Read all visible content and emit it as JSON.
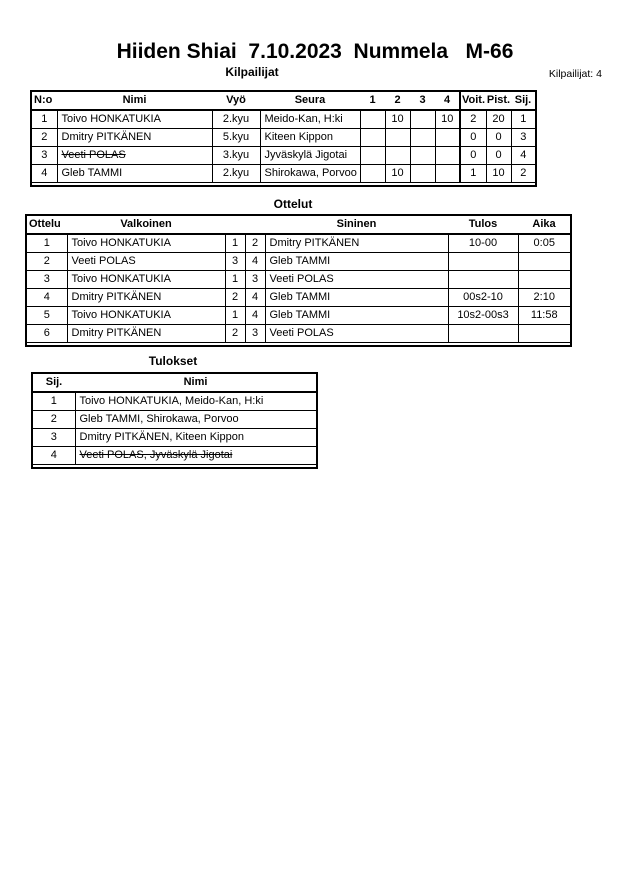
{
  "page": {
    "title": "Hiiden Shiai  7.10.2023  Nummela   M-66",
    "competitors_count": "Kilpailijat: 4"
  },
  "kilpailijat": {
    "label": "Kilpailijat",
    "headers": {
      "no": "N:o",
      "nimi": "Nimi",
      "vyo": "Vyö",
      "seura": "Seura",
      "r1": "1",
      "r2": "2",
      "r3": "3",
      "r4": "4",
      "voit": "Voit.",
      "pist": "Pist.",
      "sij": "Sij."
    },
    "rows": [
      {
        "no": "1",
        "nimi": "Toivo HONKATUKIA",
        "struck": false,
        "vyo": "2.kyu",
        "seura": "Meido-Kan, H:ki",
        "r1": "",
        "r2": "10",
        "r3": "",
        "r4": "10",
        "voit": "2",
        "pist": "20",
        "sij": "1"
      },
      {
        "no": "2",
        "nimi": "Dmitry PITKÄNEN",
        "struck": false,
        "vyo": "5.kyu",
        "seura": "Kiteen Kippon",
        "r1": "",
        "r2": "",
        "r3": "",
        "r4": "",
        "voit": "0",
        "pist": "0",
        "sij": "3"
      },
      {
        "no": "3",
        "nimi": "Veeti POLAS",
        "struck": true,
        "vyo": "3.kyu",
        "seura": "Jyväskylä Jigotai",
        "r1": "",
        "r2": "",
        "r3": "",
        "r4": "",
        "voit": "0",
        "pist": "0",
        "sij": "4"
      },
      {
        "no": "4",
        "nimi": "Gleb TAMMI",
        "struck": false,
        "vyo": "2.kyu",
        "seura": "Shirokawa, Porvoo",
        "r1": "",
        "r2": "10",
        "r3": "",
        "r4": "",
        "voit": "1",
        "pist": "10",
        "sij": "2"
      }
    ]
  },
  "ottelut": {
    "label": "Ottelut",
    "headers": {
      "ottelu": "Ottelu",
      "valkoinen": "Valkoinen",
      "wno": "",
      "bno": "",
      "sininen": "Sininen",
      "tulos": "Tulos",
      "aika": "Aika"
    },
    "rows": [
      {
        "no": "1",
        "white": "Toivo HONKATUKIA",
        "white_no": "1",
        "blue_no": "2",
        "blue": "Dmitry PITKÄNEN",
        "tulos": "10-00",
        "aika": "0:05"
      },
      {
        "no": "2",
        "white": "Veeti POLAS",
        "white_no": "3",
        "blue_no": "4",
        "blue": "Gleb TAMMI",
        "tulos": "",
        "aika": ""
      },
      {
        "no": "3",
        "white": "Toivo HONKATUKIA",
        "white_no": "1",
        "blue_no": "3",
        "blue": "Veeti POLAS",
        "tulos": "",
        "aika": ""
      },
      {
        "no": "4",
        "white": "Dmitry PITKÄNEN",
        "white_no": "2",
        "blue_no": "4",
        "blue": "Gleb TAMMI",
        "tulos": "00s2-10",
        "aika": "2:10"
      },
      {
        "no": "5",
        "white": "Toivo HONKATUKIA",
        "white_no": "1",
        "blue_no": "4",
        "blue": "Gleb TAMMI",
        "tulos": "10s2-00s3",
        "aika": "11:58"
      },
      {
        "no": "6",
        "white": "Dmitry PITKÄNEN",
        "white_no": "2",
        "blue_no": "3",
        "blue": "Veeti POLAS",
        "tulos": "",
        "aika": ""
      }
    ]
  },
  "tulokset": {
    "label": "Tulokset",
    "headers": {
      "sij": "Sij.",
      "nimi": "Nimi"
    },
    "rows": [
      {
        "sij": "1",
        "nimi": "Toivo HONKATUKIA, Meido-Kan, H:ki",
        "struck": false
      },
      {
        "sij": "2",
        "nimi": "Gleb TAMMI, Shirokawa, Porvoo",
        "struck": false
      },
      {
        "sij": "3",
        "nimi": "Dmitry PITKÄNEN, Kiteen Kippon",
        "struck": false
      },
      {
        "sij": "4",
        "nimi": "Veeti POLAS, Jyväskylä Jigotai",
        "struck": true
      }
    ]
  }
}
